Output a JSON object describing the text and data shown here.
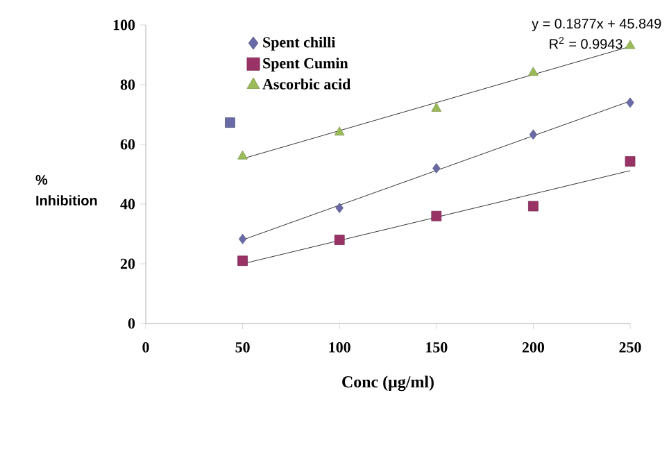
{
  "chart_data": {
    "type": "scatter",
    "xlabel": "Conc (µg/ml)",
    "ylabel": "% Inhibition",
    "xlim": [
      0,
      250
    ],
    "xticks": [
      0,
      50,
      100,
      150,
      200,
      250
    ],
    "ylim": [
      0,
      100
    ],
    "yticks": [
      0,
      20,
      40,
      60,
      80,
      100
    ],
    "x": [
      50,
      100,
      150,
      200,
      250
    ],
    "series": [
      {
        "name": "Spent chilli",
        "color": "#6a6aa6",
        "marker": "diamond",
        "values": [
          28.3,
          38.7,
          52,
          63.3,
          74
        ]
      },
      {
        "name": "Spent Cumin",
        "color": "#993366",
        "marker": "square",
        "values": [
          21,
          28,
          36,
          39.3,
          54.3
        ]
      },
      {
        "name": "Ascorbic acid",
        "color": "#9bbb59",
        "marker": "triangle",
        "values": [
          56,
          64,
          72,
          84,
          93
        ]
      },
      {
        "color": "#6a6aa6",
        "marker": "square",
        "x": [
          43.5
        ],
        "values": [
          67.3
        ]
      },
      {
        "type": "line",
        "color": "#000000",
        "marker": "none",
        "x": [
          50,
          250
        ],
        "values": [
          28,
          74.5
        ]
      },
      {
        "type": "line",
        "color": "#000000",
        "marker": "none",
        "x": [
          50,
          250
        ],
        "values": [
          20,
          51.2
        ]
      },
      {
        "type": "line",
        "color": "#000000",
        "marker": "none",
        "x": [
          50,
          250
        ],
        "values": [
          55.2,
          92.8
        ]
      }
    ],
    "legend": "top left",
    "grid": false,
    "annotations": [
      "y = 0.1877x + 45.849",
      "R$^{2}$ = 0.9943"
    ]
  }
}
